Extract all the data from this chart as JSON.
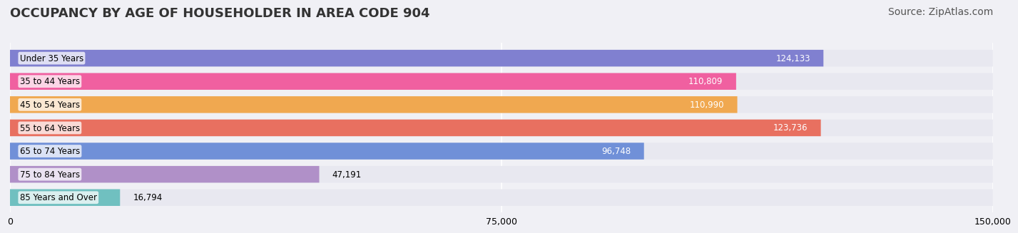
{
  "title": "OCCUPANCY BY AGE OF HOUSEHOLDER IN AREA CODE 904",
  "source": "Source: ZipAtlas.com",
  "categories": [
    "Under 35 Years",
    "35 to 44 Years",
    "45 to 54 Years",
    "55 to 64 Years",
    "65 to 74 Years",
    "75 to 84 Years",
    "85 Years and Over"
  ],
  "values": [
    124133,
    110809,
    110990,
    123736,
    96748,
    47191,
    16794
  ],
  "bar_colors": [
    "#8080d0",
    "#f060a0",
    "#f0a850",
    "#e87060",
    "#7090d8",
    "#b090c8",
    "#70c0c0"
  ],
  "label_colors": [
    "white",
    "white",
    "white",
    "white",
    "white",
    "black",
    "black"
  ],
  "xlim": [
    0,
    150000
  ],
  "xticks": [
    0,
    75000,
    150000
  ],
  "xticklabels": [
    "0",
    "75,000",
    "150,000"
  ],
  "background_color": "#f0f0f5",
  "bar_bg_color": "#e8e8f0",
  "title_fontsize": 13,
  "source_fontsize": 10
}
